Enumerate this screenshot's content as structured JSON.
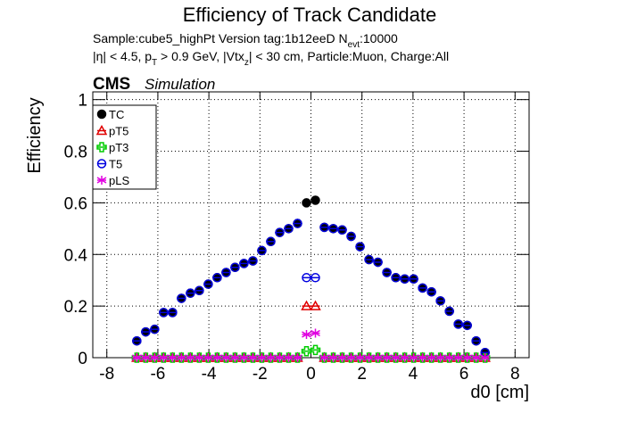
{
  "chart_data": {
    "type": "scatter",
    "title": "Efficiency of Track Candidate",
    "subtitle_lines": [
      [
        {
          "text": "Sample:cube5_highPt   Version tag:1b12eeD  N"
        },
        {
          "sub": "evt"
        },
        {
          "text": ":10000"
        }
      ],
      [
        {
          "text": "|η| < 4.5, p"
        },
        {
          "sub": "T"
        },
        {
          "text": " > 0.9 GeV, |Vtx"
        },
        {
          "sub": "z"
        },
        {
          "text": "| < 30 cm, Particle:Muon, Charge:All"
        }
      ]
    ],
    "experiment_label": "CMS",
    "experiment_sublabel": "Simulation",
    "x_label": "d0 [cm]",
    "y_label": "Efficiency",
    "xlim": [
      -8.55,
      8.55
    ],
    "ylim": [
      0,
      1.03
    ],
    "xticks": [
      -8,
      -6,
      -4,
      -2,
      0,
      2,
      4,
      6,
      8
    ],
    "yticks": [
      0,
      0.2,
      0.4,
      0.6,
      0.8,
      1
    ],
    "grid": true,
    "legend": "upper left",
    "bin_width": 0.35,
    "x": [
      -6.825,
      -6.475,
      -6.125,
      -5.775,
      -5.425,
      -5.075,
      -4.725,
      -4.375,
      -4.025,
      -3.675,
      -3.325,
      -2.975,
      -2.625,
      -2.275,
      -1.925,
      -1.575,
      -1.225,
      -0.875,
      -0.525,
      -0.175,
      0.175,
      0.525,
      0.875,
      1.225,
      1.575,
      1.925,
      2.275,
      2.625,
      2.975,
      3.325,
      3.675,
      4.025,
      4.375,
      4.725,
      5.075,
      5.425,
      5.775,
      6.125,
      6.475,
      6.825
    ],
    "series": [
      {
        "name": "TC",
        "color": "#000000",
        "marker": "circle-filled",
        "values": [
          0.065,
          0.1,
          0.11,
          0.175,
          0.175,
          0.23,
          0.25,
          0.26,
          0.285,
          0.31,
          0.33,
          0.35,
          0.365,
          0.375,
          0.415,
          0.45,
          0.485,
          0.5,
          0.52,
          0.6,
          0.61,
          0.505,
          0.5,
          0.495,
          0.47,
          0.43,
          0.38,
          0.37,
          0.33,
          0.31,
          0.305,
          0.305,
          0.27,
          0.255,
          0.22,
          0.18,
          0.13,
          0.125,
          0.065,
          0.02
        ]
      },
      {
        "name": "pT5",
        "color": "#e00000",
        "marker": "triangle-open",
        "values": [
          0,
          0,
          0,
          0,
          0,
          0,
          0,
          0,
          0,
          0,
          0,
          0,
          0,
          0,
          0,
          0,
          0,
          0,
          0,
          0.2,
          0.2,
          0,
          0,
          0,
          0,
          0,
          0,
          0,
          0,
          0,
          0,
          0,
          0,
          0,
          0,
          0,
          0,
          0,
          0,
          0
        ]
      },
      {
        "name": "pT3",
        "color": "#00cc00",
        "marker": "cross-open",
        "values": [
          0,
          0,
          0,
          0,
          0,
          0,
          0,
          0,
          0,
          0,
          0,
          0,
          0,
          0,
          0,
          0,
          0,
          0,
          0,
          0.025,
          0.03,
          0,
          0,
          0,
          0,
          0,
          0,
          0,
          0,
          0,
          0,
          0,
          0,
          0,
          0,
          0,
          0,
          0,
          0,
          0
        ]
      },
      {
        "name": "T5",
        "color": "#0000e0",
        "marker": "circle-open",
        "values": [
          0.065,
          0.1,
          0.11,
          0.175,
          0.175,
          0.23,
          0.25,
          0.26,
          0.285,
          0.31,
          0.33,
          0.35,
          0.365,
          0.375,
          0.415,
          0.45,
          0.485,
          0.5,
          0.52,
          0.31,
          0.31,
          0.505,
          0.5,
          0.495,
          0.47,
          0.43,
          0.38,
          0.37,
          0.33,
          0.31,
          0.305,
          0.305,
          0.27,
          0.255,
          0.22,
          0.18,
          0.13,
          0.125,
          0.065,
          0.02
        ]
      },
      {
        "name": "pLS",
        "color": "#e000e0",
        "marker": "star-open",
        "values": [
          0,
          0,
          0,
          0,
          0,
          0,
          0,
          0,
          0,
          0,
          0,
          0,
          0,
          0,
          0,
          0,
          0,
          0,
          0,
          0.09,
          0.095,
          0,
          0,
          0,
          0,
          0,
          0,
          0,
          0,
          0,
          0,
          0,
          0,
          0,
          0,
          0,
          0,
          0,
          0,
          0
        ]
      }
    ]
  }
}
